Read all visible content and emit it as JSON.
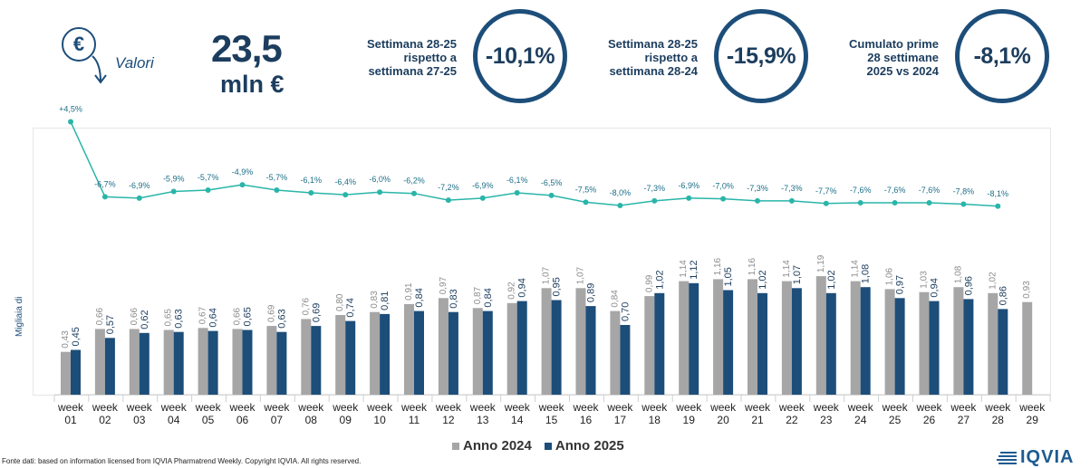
{
  "header": {
    "icon": "euro-down-arrow-icon",
    "values_label": "Valori",
    "big_value": "23,5",
    "big_unit": "mln €"
  },
  "kpis": [
    {
      "label_lines": [
        "Settimana 28-25",
        "rispetto a",
        "settimana 27-25"
      ],
      "value": "-10,1%"
    },
    {
      "label_lines": [
        "Settimana 28-25",
        "rispetto a",
        "settimana 28-24"
      ],
      "value": "-15,9%"
    },
    {
      "label_lines": [
        "Cumulato prime",
        "28 settimane",
        "2025 vs 2024"
      ],
      "value": "-8,1%"
    }
  ],
  "legend": {
    "series_2024": "Anno 2024",
    "series_2025": "Anno 2025"
  },
  "footer": "Fonte dati: based on information licensed from IQVIA Pharmatrend Weekly. Copyright IQVIA. All rights reserved.",
  "logo": "IQVIA",
  "colors": {
    "series_2024": "#a6a6a6",
    "series_2025": "#1d4e7a",
    "line": "#2ab5a9",
    "accent": "#1d4e7a"
  },
  "chart_data": {
    "type": "bar",
    "ylabel": "Migliaia di",
    "categories": [
      "week 01",
      "week 02",
      "week 03",
      "week 04",
      "week 05",
      "week 06",
      "week 07",
      "week 08",
      "week 09",
      "week 10",
      "week 11",
      "week 12",
      "week 13",
      "week 14",
      "week 15",
      "week 16",
      "week 17",
      "week 18",
      "week 19",
      "week 20",
      "week 21",
      "week 22",
      "week 23",
      "week 24",
      "week 25",
      "week 26",
      "week 27",
      "week 28",
      "week 29"
    ],
    "category_lines": [
      [
        "week",
        "01"
      ],
      [
        "week",
        "02"
      ],
      [
        "week",
        "03"
      ],
      [
        "week",
        "04"
      ],
      [
        "week",
        "05"
      ],
      [
        "week",
        "06"
      ],
      [
        "week",
        "07"
      ],
      [
        "week",
        "08"
      ],
      [
        "week",
        "09"
      ],
      [
        "week",
        "10"
      ],
      [
        "week",
        "11"
      ],
      [
        "week",
        "12"
      ],
      [
        "week",
        "13"
      ],
      [
        "week",
        "14"
      ],
      [
        "week",
        "15"
      ],
      [
        "week",
        "16"
      ],
      [
        "week",
        "17"
      ],
      [
        "week",
        "18"
      ],
      [
        "week",
        "19"
      ],
      [
        "week",
        "20"
      ],
      [
        "week",
        "21"
      ],
      [
        "week",
        "22"
      ],
      [
        "week",
        "23"
      ],
      [
        "week",
        "24"
      ],
      [
        "week",
        "25"
      ],
      [
        "week",
        "26"
      ],
      [
        "week",
        "27"
      ],
      [
        "week",
        "28"
      ],
      [
        "week",
        "29"
      ]
    ],
    "series": [
      {
        "name": "Anno 2024",
        "values": [
          0.43,
          0.66,
          0.66,
          0.65,
          0.67,
          0.66,
          0.69,
          0.76,
          0.8,
          0.83,
          0.91,
          0.97,
          0.87,
          0.92,
          1.07,
          1.07,
          0.84,
          0.99,
          1.14,
          1.16,
          1.16,
          1.14,
          1.19,
          1.14,
          1.06,
          1.03,
          1.08,
          1.02,
          0.93
        ],
        "labels": [
          "0,43",
          "0,66",
          "0,66",
          "0,65",
          "0,67",
          "0,66",
          "0,69",
          "0,76",
          "0,80",
          "0,83",
          "0,91",
          "0,97",
          "0,87",
          "0,92",
          "1,07",
          "1,07",
          "0,84",
          "0,99",
          "1,14",
          "1,16",
          "1,16",
          "1,14",
          "1,19",
          "1,14",
          "1,06",
          "1,03",
          "1,08",
          "1,02",
          "0,93"
        ]
      },
      {
        "name": "Anno 2025",
        "values": [
          0.45,
          0.57,
          0.62,
          0.63,
          0.64,
          0.65,
          0.63,
          0.69,
          0.74,
          0.81,
          0.84,
          0.83,
          0.84,
          0.94,
          0.95,
          0.89,
          0.7,
          1.02,
          1.12,
          1.05,
          1.02,
          1.07,
          1.02,
          1.08,
          0.97,
          0.94,
          0.96,
          0.86,
          null
        ],
        "labels": [
          "0,45",
          "0,57",
          "0,62",
          "0,63",
          "0,64",
          "0,65",
          "0,63",
          "0,69",
          "0,74",
          "0,81",
          "0,84",
          "0,83",
          "0,84",
          "0,94",
          "0,95",
          "0,89",
          "0,70",
          "1,02",
          "1,12",
          "1,05",
          "1,02",
          "1,07",
          "1,02",
          "1,08",
          "0,97",
          "0,94",
          "0,96",
          "0,86",
          ""
        ]
      }
    ],
    "variation": {
      "values": [
        4.5,
        -6.7,
        -6.9,
        -5.9,
        -5.7,
        -4.9,
        -5.7,
        -6.1,
        -6.4,
        -6.0,
        -6.2,
        -7.2,
        -6.9,
        -6.1,
        -6.5,
        -7.5,
        -8.0,
        -7.3,
        -6.9,
        -7.0,
        -7.3,
        -7.3,
        -7.7,
        -7.6,
        -7.6,
        -7.6,
        -7.8,
        -8.1
      ],
      "labels": [
        "+4,5%",
        "-6,7%",
        "-6,9%",
        "-5,9%",
        "-5,7%",
        "-4,9%",
        "-5,7%",
        "-6,1%",
        "-6,4%",
        "-6,0%",
        "-6,2%",
        "-7,2%",
        "-6,9%",
        "-6,1%",
        "-6,5%",
        "-7,5%",
        "-8,0%",
        "-7,3%",
        "-6,9%",
        "-7,0%",
        "-7,3%",
        "-7,3%",
        "-7,7%",
        "-7,6%",
        "-7,6%",
        "-7,6%",
        "-7,8%",
        "-8,1%"
      ]
    }
  }
}
